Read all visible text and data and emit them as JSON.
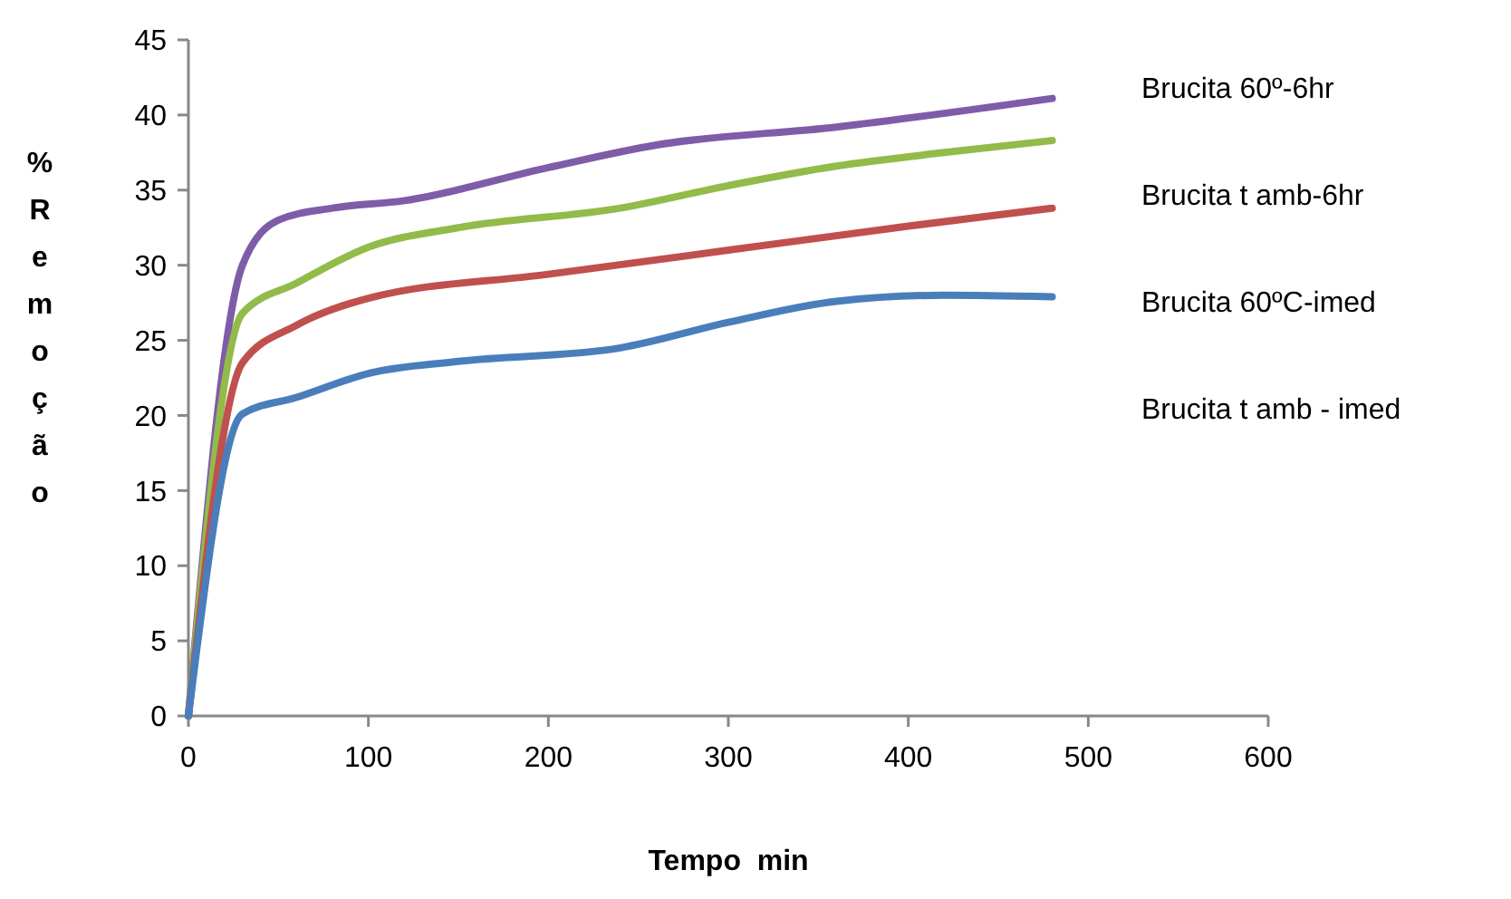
{
  "chart_data": {
    "type": "line",
    "xlabel": "Tempo  min",
    "ylabel": "%Remoção",
    "xlim": [
      0,
      600
    ],
    "xticks": [
      0,
      100,
      200,
      300,
      400,
      500,
      600
    ],
    "ylim": [
      0,
      45
    ],
    "yticks": [
      0,
      5,
      10,
      15,
      20,
      25,
      30,
      35,
      40,
      45
    ],
    "grid": false,
    "legend": "right",
    "marker": "none",
    "line_style": "solid",
    "series": [
      {
        "name": "Brucita 60º-6hr",
        "color": "#7f5ca8",
        "x": [
          0,
          30,
          50,
          80,
          120,
          200,
          260,
          360,
          480
        ],
        "values": [
          0,
          30,
          33,
          33.8,
          34.3,
          36.5,
          38,
          39.2,
          41.1
        ]
      },
      {
        "name": "Brucita t amb-6hr",
        "color": "#92bb4a",
        "x": [
          0,
          30,
          60,
          100,
          150,
          240,
          300,
          360,
          420,
          480
        ],
        "values": [
          0,
          26.8,
          28.8,
          31.2,
          32.5,
          33.8,
          35.3,
          36.6,
          37.5,
          38.3
        ]
      },
      {
        "name": "Brucita 60ºC-imed",
        "color": "#c0504d",
        "x": [
          0,
          30,
          60,
          100,
          200,
          300,
          400,
          480
        ],
        "values": [
          0,
          23.5,
          26,
          27.8,
          29.4,
          31,
          32.6,
          33.8
        ]
      },
      {
        "name": "Brucita t amb - imed",
        "color": "#4a7ebb",
        "x": [
          0,
          30,
          60,
          100,
          150,
          240,
          300,
          360,
          420,
          480
        ],
        "values": [
          0,
          20.1,
          21.2,
          22.8,
          23.6,
          24.5,
          26.2,
          27.6,
          28,
          27.9
        ]
      }
    ]
  }
}
